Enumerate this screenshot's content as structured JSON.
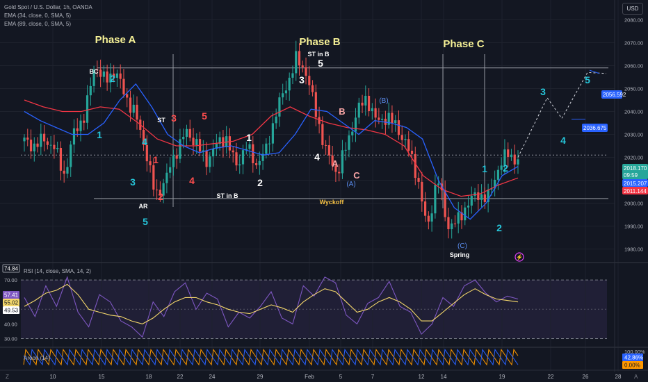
{
  "header": {
    "symbol_line": "Gold Spot / U.S. Dollar, 1h, OANDA",
    "ema1": "EMA (34, close, 0, SMA, 5)",
    "ema2": "EMA (89, close, 0, SMA, 5)",
    "currency": "USD"
  },
  "colors": {
    "bg": "#131722",
    "grid": "#1e222d",
    "up": "#26a69a",
    "down": "#ef5350",
    "ema34": "#2962ff",
    "ema89": "#f23645",
    "phase": "#f6f196",
    "cyan": "#26c6da",
    "red_label": "#ff4d4d",
    "rsi": "#7e57c2",
    "rsi_ma": "#f5d86b",
    "aroon_up": "#ff9800",
    "aroon_dn": "#2962ff"
  },
  "chart_data": [
    {
      "type": "candlestick",
      "title": "Gold Spot / U.S. Dollar, 1h, OANDA",
      "ylim": [
        1975,
        2085
      ],
      "y_ticks": [
        1980,
        1990,
        2000,
        2010,
        2020,
        2030,
        2040,
        2050,
        2060,
        2070,
        2080
      ],
      "x_ticks": [
        "10",
        "15",
        "18",
        "22",
        "24",
        "29",
        "Feb",
        "5",
        "7",
        "12",
        "14",
        "19",
        "22",
        "26",
        "28"
      ],
      "price_path": [
        2027,
        2025,
        2028,
        2024,
        2012,
        2032,
        2038,
        2061,
        2053,
        2058,
        2047,
        2039,
        2024,
        2003,
        2010,
        2022,
        2031,
        2027,
        2018,
        2025,
        2029,
        2016,
        2025,
        2017,
        2023,
        2040,
        2051,
        2063,
        2057,
        2038,
        2022,
        2013,
        2025,
        2040,
        2046,
        2035,
        2038,
        2033,
        2025,
        2012,
        1988,
        2012,
        1990,
        1992,
        2000,
        2004,
        2002,
        2015,
        2022,
        2018
      ],
      "series": [
        {
          "name": "EMA (34, close, 0, SMA, 5)",
          "values": [
            2040,
            2036,
            2033,
            2030,
            2030,
            2035,
            2045,
            2052,
            2042,
            2030,
            2025,
            2022,
            2024,
            2025,
            2023,
            2021,
            2022,
            2030,
            2041,
            2040,
            2035,
            2030,
            2036,
            2035,
            2033,
            2028,
            2010,
            1998,
            1993,
            2000,
            2012,
            2016
          ]
        },
        {
          "name": "EMA (89, close, 0, SMA, 5)",
          "values": [
            2045,
            2042,
            2040,
            2040,
            2042,
            2041,
            2035,
            2028,
            2025,
            2025,
            2026,
            2027,
            2030,
            2038,
            2042,
            2038,
            2035,
            2033,
            2032,
            2030,
            2025,
            2012,
            2006,
            2003,
            2004,
            2008,
            2011
          ]
        }
      ],
      "horizontal_lines": [
        2059,
        2021,
        2020,
        2002
      ],
      "price_labels": [
        {
          "value": "2056.592",
          "color": "#2962ff"
        },
        {
          "value": "2036.675",
          "color": "#2962ff"
        },
        {
          "value": "2018.170",
          "sub": "09:59",
          "color": "#26a69a"
        },
        {
          "value": "2015.207",
          "color": "#2962ff"
        },
        {
          "value": "2011.144",
          "color": "#f23645"
        }
      ],
      "projection": [
        2020,
        2046,
        2037,
        2057,
        2056.592
      ],
      "annotations": {
        "phases": [
          "Phase A",
          "Phase B",
          "Phase C"
        ],
        "structure": [
          "BC",
          "ST",
          "AR",
          "ST in B",
          "ST in B",
          "Wyckoff",
          "Spring"
        ],
        "white_wave": [
          "1",
          "2",
          "3",
          "4",
          "5"
        ],
        "red_wave": [
          "1",
          "2",
          "3",
          "4",
          "5"
        ],
        "cyan_wave": [
          "1",
          "2",
          "3",
          "4",
          "5"
        ],
        "cyan_proj": [
          "1",
          "2",
          "3",
          "4",
          "5"
        ],
        "abc_pink": [
          "A",
          "B",
          "C"
        ],
        "abc_blue": [
          "(A)",
          "(B)",
          "(C)"
        ]
      }
    },
    {
      "type": "line",
      "title": "RSI (14, close, SMA, 14, 2)",
      "ylim": [
        25,
        80
      ],
      "y_ticks": [
        "70.00",
        "60.00",
        "40.00",
        "30.00"
      ],
      "last_values": {
        "rsi_max": "74.84",
        "rsi": "57.41",
        "rsi_ma": "55.02",
        "level": "49.53"
      },
      "series": [
        {
          "name": "RSI",
          "values": [
            58,
            45,
            66,
            52,
            72,
            48,
            38,
            60,
            55,
            42,
            38,
            31,
            55,
            45,
            62,
            68,
            50,
            61,
            57,
            38,
            48,
            44,
            52,
            62,
            44,
            40,
            66,
            59,
            72,
            68,
            46,
            40,
            54,
            58,
            69,
            52,
            48,
            33,
            40,
            58,
            52,
            66,
            70,
            61,
            55,
            59,
            57
          ]
        },
        {
          "name": "SMA",
          "values": [
            52,
            56,
            61,
            63,
            67,
            60,
            50,
            48,
            46,
            45,
            42,
            40,
            44,
            50,
            55,
            58,
            58,
            55,
            53,
            50,
            48,
            47,
            50,
            53,
            51,
            48,
            55,
            60,
            64,
            62,
            55,
            48,
            50,
            55,
            58,
            55,
            50,
            42,
            42,
            48,
            54,
            60,
            64,
            60,
            57,
            56,
            55
          ]
        }
      ]
    },
    {
      "type": "line",
      "title": "Aroon (14)",
      "last_values": {
        "up": "42.86%",
        "down": "0.00%"
      },
      "top_tick": "100.00%"
    }
  ],
  "time_axis_end": {
    "left": "Z",
    "right": "A"
  }
}
